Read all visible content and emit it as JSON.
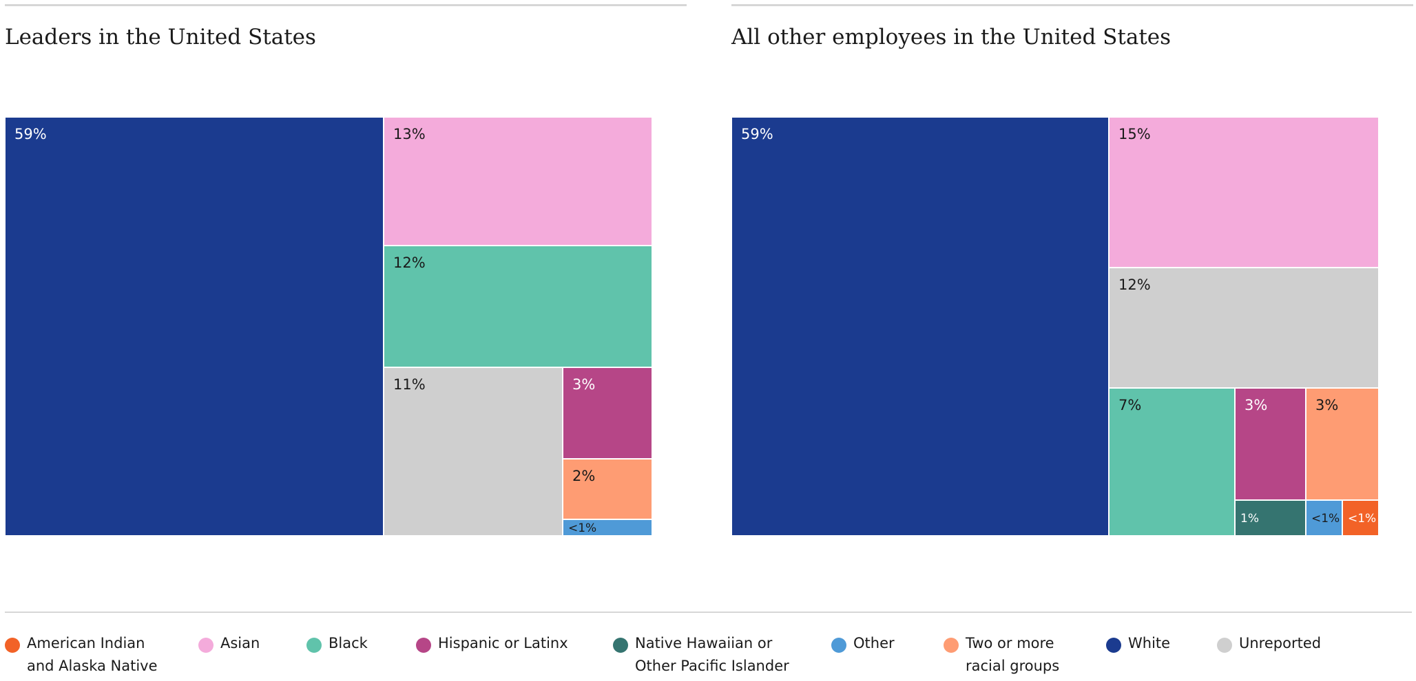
{
  "categories": [
    {
      "key": "aian",
      "label": "American Indian\nand Alaska Native",
      "color": "#f26227"
    },
    {
      "key": "asian",
      "label": "Asian",
      "color": "#f4abdb"
    },
    {
      "key": "black",
      "label": "Black",
      "color": "#60c3ab"
    },
    {
      "key": "hispanic",
      "label": "Hispanic or Latinx",
      "color": "#b64687"
    },
    {
      "key": "nhopi",
      "label": "Native Hawaiian or\nOther Pacific Islander",
      "color": "#357470"
    },
    {
      "key": "other",
      "label": "Other",
      "color": "#4f9ad7"
    },
    {
      "key": "twoplus",
      "label": "Two or more\nracial groups",
      "color": "#fe9c73"
    },
    {
      "key": "white",
      "label": "White",
      "color": "#1b3b8f"
    },
    {
      "key": "unreported",
      "label": "Unreported",
      "color": "#cfcfcf"
    }
  ],
  "chart_data": [
    {
      "type": "treemap",
      "title": "Leaders in the United States",
      "cells": [
        {
          "category": "White",
          "value": 59,
          "label": "59%"
        },
        {
          "category": "Asian",
          "value": 13,
          "label": "13%"
        },
        {
          "category": "Black",
          "value": 12,
          "label": "12%"
        },
        {
          "category": "Unreported",
          "value": 11,
          "label": "11%"
        },
        {
          "category": "Hispanic or Latinx",
          "value": 3,
          "label": "3%"
        },
        {
          "category": "Two or more racial groups",
          "value": 2,
          "label": "2%"
        },
        {
          "category": "Other",
          "value": 0.5,
          "label": "<1%"
        }
      ]
    },
    {
      "type": "treemap",
      "title": "All other employees in the United States",
      "cells": [
        {
          "category": "White",
          "value": 59,
          "label": "59%"
        },
        {
          "category": "Asian",
          "value": 15,
          "label": "15%"
        },
        {
          "category": "Unreported",
          "value": 12,
          "label": "12%"
        },
        {
          "category": "Black",
          "value": 7,
          "label": "7%"
        },
        {
          "category": "Hispanic or Latinx",
          "value": 3,
          "label": "3%"
        },
        {
          "category": "Two or more racial groups",
          "value": 3,
          "label": "3%"
        },
        {
          "category": "Native Hawaiian or Other Pacific Islander",
          "value": 1,
          "label": "1%"
        },
        {
          "category": "Other",
          "value": 0.5,
          "label": "<1%"
        },
        {
          "category": "American Indian and Alaska Native",
          "value": 0.5,
          "label": "<1%"
        }
      ]
    }
  ]
}
